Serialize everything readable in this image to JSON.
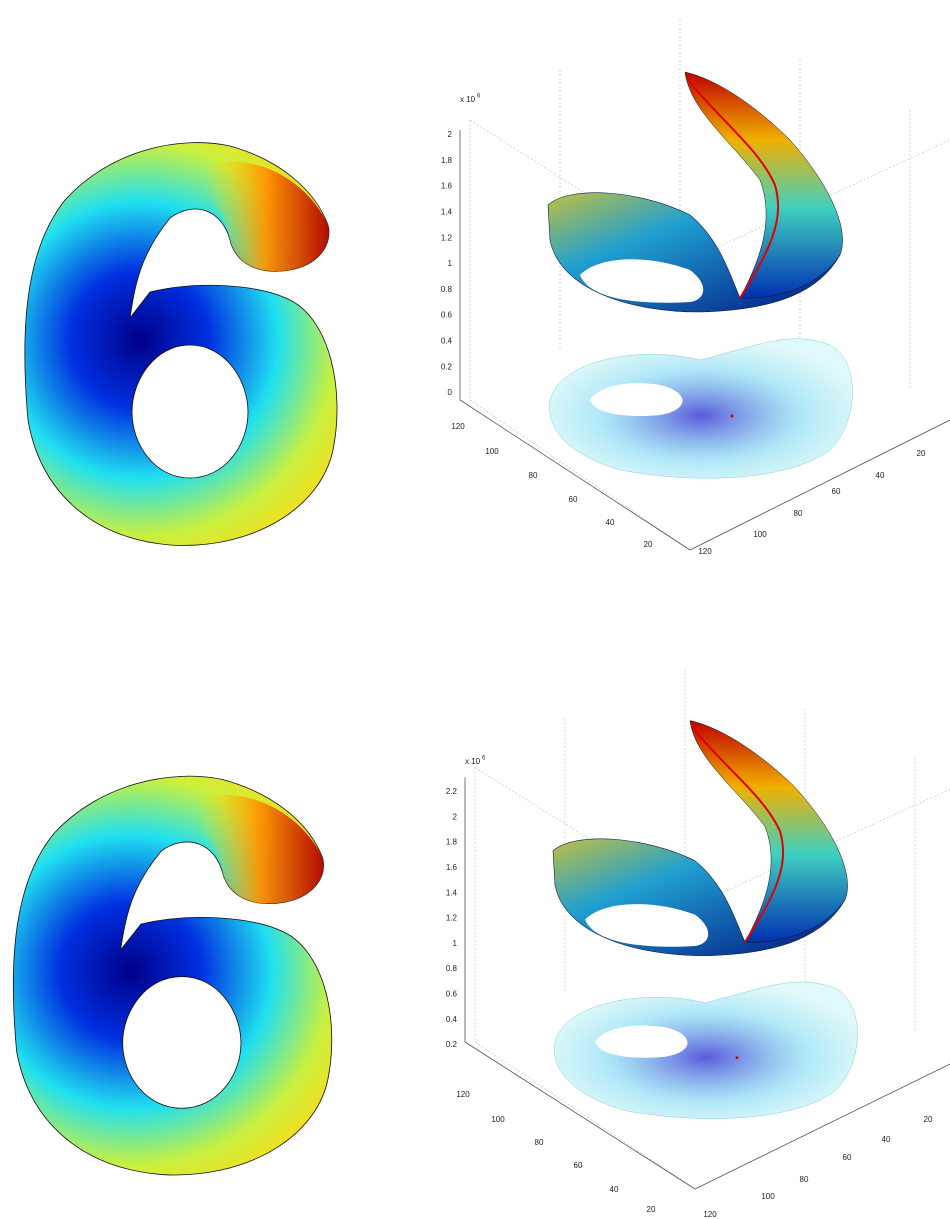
{
  "panels": [
    {
      "z_exponent": "x 10",
      "z_exponent_power": "6",
      "z_ticks": [
        "2",
        "1.8",
        "1.6",
        "1.4",
        "1.2",
        "1",
        "0.8",
        "0.6",
        "0.4",
        "0.2",
        "0"
      ],
      "left_ticks": [
        "120",
        "100",
        "80",
        "60",
        "40",
        "20"
      ],
      "right_ticks": [
        "120",
        "100",
        "80",
        "60",
        "40",
        "20"
      ]
    },
    {
      "z_exponent": "x 10",
      "z_exponent_power": "6",
      "z_ticks": [
        "2.2",
        "2",
        "1.8",
        "1.6",
        "1.4",
        "1.2",
        "1",
        "0.8",
        "0.6",
        "0.4",
        "0.2"
      ],
      "left_ticks": [
        "120",
        "100",
        "80",
        "60",
        "40",
        "20"
      ],
      "right_ticks": [
        "120",
        "100",
        "80",
        "60",
        "40",
        "20"
      ]
    }
  ]
}
